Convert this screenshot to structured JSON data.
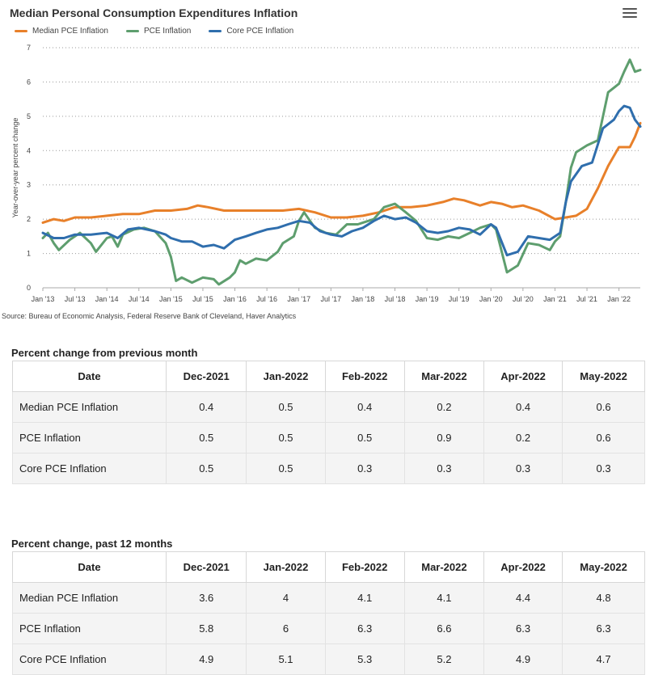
{
  "chart": {
    "title": "Median Personal Consumption Expenditures Inflation",
    "menu_icon": "hamburger-menu-icon",
    "source": "Source: Bureau of Economic Analysis, Federal Reserve Bank of Cleveland, Haver Analytics"
  },
  "colors": {
    "median": "#e8802a",
    "pce": "#5e9e6e",
    "core": "#2f6ead",
    "grid": "#999999"
  },
  "chart_data": {
    "type": "line",
    "title": "Median Personal Consumption Expenditures Inflation",
    "xlabel": "",
    "ylabel": "Year-over-year percent change",
    "ylim": [
      0,
      7
    ],
    "yticks": [
      "0",
      "1",
      "2",
      "3",
      "4",
      "5",
      "6",
      "7"
    ],
    "grid": true,
    "legend_position": "top-left",
    "xticks": [
      {
        "label": "Jan '13",
        "x": 2013.0
      },
      {
        "label": "Jul '13",
        "x": 2013.5
      },
      {
        "label": "Jan '14",
        "x": 2014.0
      },
      {
        "label": "Jul '14",
        "x": 2014.5
      },
      {
        "label": "Jan '15",
        "x": 2015.0
      },
      {
        "label": "Jul '15",
        "x": 2015.5
      },
      {
        "label": "Jan '16",
        "x": 2016.0
      },
      {
        "label": "Jul '16",
        "x": 2016.5
      },
      {
        "label": "Jan '17",
        "x": 2017.0
      },
      {
        "label": "Jul '17",
        "x": 2017.5
      },
      {
        "label": "Jan '18",
        "x": 2018.0
      },
      {
        "label": "Jul '18",
        "x": 2018.5
      },
      {
        "label": "Jan '19",
        "x": 2019.0
      },
      {
        "label": "Jul '19",
        "x": 2019.5
      },
      {
        "label": "Jan '20",
        "x": 2020.0
      },
      {
        "label": "Jul '20",
        "x": 2020.5
      },
      {
        "label": "Jan '21",
        "x": 2021.0
      },
      {
        "label": "Jul '21",
        "x": 2021.5
      },
      {
        "label": "Jan '22",
        "x": 2022.0
      }
    ],
    "xlim": [
      2013.0,
      2022.333
    ],
    "series": [
      {
        "name": "Median PCE Inflation",
        "key": "median",
        "points": [
          [
            2013.0,
            1.9
          ],
          [
            2013.17,
            2.0
          ],
          [
            2013.33,
            1.95
          ],
          [
            2013.5,
            2.05
          ],
          [
            2013.75,
            2.05
          ],
          [
            2014.0,
            2.1
          ],
          [
            2014.25,
            2.15
          ],
          [
            2014.5,
            2.15
          ],
          [
            2014.75,
            2.25
          ],
          [
            2015.0,
            2.25
          ],
          [
            2015.25,
            2.3
          ],
          [
            2015.42,
            2.4
          ],
          [
            2015.58,
            2.35
          ],
          [
            2015.83,
            2.25
          ],
          [
            2016.0,
            2.25
          ],
          [
            2016.25,
            2.25
          ],
          [
            2016.5,
            2.25
          ],
          [
            2016.75,
            2.25
          ],
          [
            2017.0,
            2.3
          ],
          [
            2017.25,
            2.2
          ],
          [
            2017.5,
            2.05
          ],
          [
            2017.75,
            2.05
          ],
          [
            2018.0,
            2.1
          ],
          [
            2018.25,
            2.2
          ],
          [
            2018.5,
            2.35
          ],
          [
            2018.75,
            2.35
          ],
          [
            2019.0,
            2.4
          ],
          [
            2019.25,
            2.5
          ],
          [
            2019.42,
            2.6
          ],
          [
            2019.58,
            2.55
          ],
          [
            2019.83,
            2.4
          ],
          [
            2020.0,
            2.5
          ],
          [
            2020.17,
            2.45
          ],
          [
            2020.33,
            2.35
          ],
          [
            2020.5,
            2.4
          ],
          [
            2020.75,
            2.25
          ],
          [
            2021.0,
            2.0
          ],
          [
            2021.17,
            2.05
          ],
          [
            2021.33,
            2.1
          ],
          [
            2021.5,
            2.3
          ],
          [
            2021.67,
            2.9
          ],
          [
            2021.83,
            3.55
          ],
          [
            2022.0,
            4.1
          ],
          [
            2022.08,
            4.1
          ],
          [
            2022.17,
            4.1
          ],
          [
            2022.25,
            4.4
          ],
          [
            2022.333,
            4.8
          ]
        ]
      },
      {
        "name": "PCE Inflation",
        "key": "pce",
        "points": [
          [
            2013.0,
            1.45
          ],
          [
            2013.08,
            1.6
          ],
          [
            2013.17,
            1.3
          ],
          [
            2013.25,
            1.1
          ],
          [
            2013.42,
            1.4
          ],
          [
            2013.58,
            1.6
          ],
          [
            2013.75,
            1.3
          ],
          [
            2013.83,
            1.05
          ],
          [
            2014.0,
            1.45
          ],
          [
            2014.08,
            1.5
          ],
          [
            2014.17,
            1.2
          ],
          [
            2014.25,
            1.55
          ],
          [
            2014.42,
            1.7
          ],
          [
            2014.58,
            1.75
          ],
          [
            2014.75,
            1.65
          ],
          [
            2014.92,
            1.3
          ],
          [
            2015.0,
            0.9
          ],
          [
            2015.08,
            0.2
          ],
          [
            2015.17,
            0.3
          ],
          [
            2015.33,
            0.15
          ],
          [
            2015.5,
            0.3
          ],
          [
            2015.67,
            0.25
          ],
          [
            2015.75,
            0.1
          ],
          [
            2015.92,
            0.3
          ],
          [
            2016.0,
            0.45
          ],
          [
            2016.08,
            0.8
          ],
          [
            2016.17,
            0.7
          ],
          [
            2016.33,
            0.85
          ],
          [
            2016.5,
            0.8
          ],
          [
            2016.67,
            1.05
          ],
          [
            2016.75,
            1.3
          ],
          [
            2016.92,
            1.5
          ],
          [
            2017.0,
            1.95
          ],
          [
            2017.08,
            2.2
          ],
          [
            2017.25,
            1.75
          ],
          [
            2017.42,
            1.6
          ],
          [
            2017.58,
            1.55
          ],
          [
            2017.75,
            1.85
          ],
          [
            2017.92,
            1.85
          ],
          [
            2018.0,
            1.9
          ],
          [
            2018.17,
            2.0
          ],
          [
            2018.33,
            2.35
          ],
          [
            2018.5,
            2.45
          ],
          [
            2018.67,
            2.2
          ],
          [
            2018.83,
            1.95
          ],
          [
            2019.0,
            1.45
          ],
          [
            2019.17,
            1.4
          ],
          [
            2019.33,
            1.5
          ],
          [
            2019.5,
            1.45
          ],
          [
            2019.67,
            1.6
          ],
          [
            2019.83,
            1.75
          ],
          [
            2020.0,
            1.85
          ],
          [
            2020.08,
            1.7
          ],
          [
            2020.25,
            0.45
          ],
          [
            2020.42,
            0.65
          ],
          [
            2020.58,
            1.3
          ],
          [
            2020.75,
            1.25
          ],
          [
            2020.92,
            1.1
          ],
          [
            2021.0,
            1.35
          ],
          [
            2021.08,
            1.5
          ],
          [
            2021.17,
            2.5
          ],
          [
            2021.25,
            3.5
          ],
          [
            2021.33,
            3.95
          ],
          [
            2021.5,
            4.15
          ],
          [
            2021.67,
            4.3
          ],
          [
            2021.83,
            5.7
          ],
          [
            2022.0,
            5.95
          ],
          [
            2022.08,
            6.3
          ],
          [
            2022.17,
            6.65
          ],
          [
            2022.25,
            6.3
          ],
          [
            2022.333,
            6.35
          ]
        ]
      },
      {
        "name": "Core PCE Inflation",
        "key": "core",
        "points": [
          [
            2013.0,
            1.6
          ],
          [
            2013.17,
            1.45
          ],
          [
            2013.33,
            1.45
          ],
          [
            2013.5,
            1.55
          ],
          [
            2013.75,
            1.55
          ],
          [
            2014.0,
            1.6
          ],
          [
            2014.17,
            1.45
          ],
          [
            2014.33,
            1.7
          ],
          [
            2014.5,
            1.75
          ],
          [
            2014.75,
            1.65
          ],
          [
            2014.92,
            1.55
          ],
          [
            2015.0,
            1.45
          ],
          [
            2015.17,
            1.35
          ],
          [
            2015.33,
            1.35
          ],
          [
            2015.5,
            1.2
          ],
          [
            2015.67,
            1.25
          ],
          [
            2015.83,
            1.15
          ],
          [
            2016.0,
            1.4
          ],
          [
            2016.17,
            1.5
          ],
          [
            2016.33,
            1.6
          ],
          [
            2016.5,
            1.7
          ],
          [
            2016.67,
            1.75
          ],
          [
            2016.83,
            1.85
          ],
          [
            2017.0,
            1.95
          ],
          [
            2017.17,
            1.9
          ],
          [
            2017.33,
            1.65
          ],
          [
            2017.5,
            1.55
          ],
          [
            2017.67,
            1.5
          ],
          [
            2017.83,
            1.65
          ],
          [
            2018.0,
            1.75
          ],
          [
            2018.17,
            1.95
          ],
          [
            2018.33,
            2.1
          ],
          [
            2018.5,
            2.0
          ],
          [
            2018.67,
            2.05
          ],
          [
            2018.83,
            1.9
          ],
          [
            2019.0,
            1.65
          ],
          [
            2019.17,
            1.6
          ],
          [
            2019.33,
            1.65
          ],
          [
            2019.5,
            1.75
          ],
          [
            2019.67,
            1.7
          ],
          [
            2019.83,
            1.55
          ],
          [
            2020.0,
            1.85
          ],
          [
            2020.08,
            1.75
          ],
          [
            2020.25,
            0.95
          ],
          [
            2020.42,
            1.05
          ],
          [
            2020.58,
            1.5
          ],
          [
            2020.75,
            1.45
          ],
          [
            2020.92,
            1.4
          ],
          [
            2021.0,
            1.5
          ],
          [
            2021.08,
            1.6
          ],
          [
            2021.17,
            2.5
          ],
          [
            2021.25,
            3.1
          ],
          [
            2021.42,
            3.55
          ],
          [
            2021.58,
            3.65
          ],
          [
            2021.75,
            4.65
          ],
          [
            2021.92,
            4.9
          ],
          [
            2022.0,
            5.15
          ],
          [
            2022.08,
            5.3
          ],
          [
            2022.17,
            5.25
          ],
          [
            2022.25,
            4.9
          ],
          [
            2022.333,
            4.7
          ]
        ]
      }
    ]
  },
  "tables": [
    {
      "title": "Percent change from previous month",
      "headers": [
        "Date",
        "Dec-2021",
        "Jan-2022",
        "Feb-2022",
        "Mar-2022",
        "Apr-2022",
        "May-2022"
      ],
      "rows": [
        [
          "Median PCE Inflation",
          "0.4",
          "0.5",
          "0.4",
          "0.2",
          "0.4",
          "0.6"
        ],
        [
          "PCE Inflation",
          "0.5",
          "0.5",
          "0.5",
          "0.9",
          "0.2",
          "0.6"
        ],
        [
          "Core PCE Inflation",
          "0.5",
          "0.5",
          "0.3",
          "0.3",
          "0.3",
          "0.3"
        ]
      ]
    },
    {
      "title": "Percent change, past 12 months",
      "headers": [
        "Date",
        "Dec-2021",
        "Jan-2022",
        "Feb-2022",
        "Mar-2022",
        "Apr-2022",
        "May-2022"
      ],
      "rows": [
        [
          "Median PCE Inflation",
          "3.6",
          "4",
          "4.1",
          "4.1",
          "4.4",
          "4.8"
        ],
        [
          "PCE Inflation",
          "5.8",
          "6",
          "6.3",
          "6.6",
          "6.3",
          "6.3"
        ],
        [
          "Core PCE Inflation",
          "4.9",
          "5.1",
          "5.3",
          "5.2",
          "4.9",
          "4.7"
        ]
      ]
    }
  ]
}
